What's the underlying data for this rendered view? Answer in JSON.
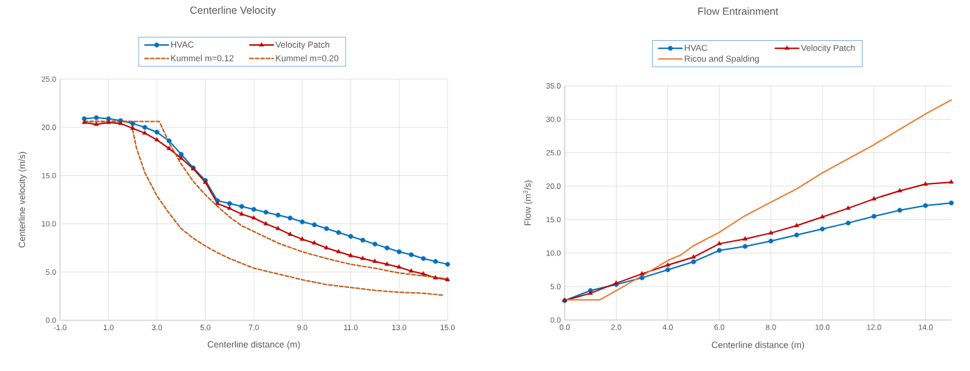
{
  "chart_data": [
    {
      "type": "line",
      "title": "Centerline Velocity",
      "xlabel": "Centerline distance (m)",
      "ylabel": "Centerline velocity (m/s)",
      "x": [
        0,
        0.5,
        1,
        1.5,
        2,
        2.5,
        3,
        3.5,
        4,
        4.5,
        5,
        5.5,
        6,
        6.5,
        7,
        7.5,
        8,
        8.5,
        9,
        9.5,
        10,
        10.5,
        11,
        11.5,
        12,
        12.5,
        13,
        13.5,
        14,
        14.5,
        15
      ],
      "xlim": [
        -1,
        15
      ],
      "xticks": [
        {
          "value": -1,
          "label": "-1.0"
        },
        {
          "value": 1,
          "label": "1.0"
        },
        {
          "value": 3,
          "label": "3.0"
        },
        {
          "value": 5,
          "label": "5.0"
        },
        {
          "value": 7,
          "label": "7.0"
        },
        {
          "value": 9,
          "label": "9.0"
        },
        {
          "value": 11,
          "label": "11.0"
        },
        {
          "value": 13,
          "label": "13.0"
        },
        {
          "value": 15,
          "label": "15.0"
        }
      ],
      "ylim": [
        0,
        25
      ],
      "yticks": [
        {
          "value": 0,
          "label": "0.0"
        },
        {
          "value": 5,
          "label": "5.0"
        },
        {
          "value": 10,
          "label": "10.0"
        },
        {
          "value": 15,
          "label": "15.0"
        },
        {
          "value": 20,
          "label": "20.0"
        },
        {
          "value": 25,
          "label": "25.0"
        }
      ],
      "grid": true,
      "legend": "top",
      "series": [
        {
          "name": "HVAC",
          "color": "#0070c0",
          "marker": "circle",
          "line_style": "solid",
          "values": [
            20.9,
            21.0,
            20.9,
            20.7,
            20.4,
            20.0,
            19.5,
            18.6,
            17.2,
            15.8,
            14.5,
            12.4,
            12.1,
            11.8,
            11.5,
            11.2,
            10.9,
            10.6,
            10.2,
            9.9,
            9.5,
            9.1,
            8.7,
            8.3,
            7.9,
            7.5,
            7.1,
            6.8,
            6.4,
            6.1,
            5.8
          ]
        },
        {
          "name": "Velocity Patch",
          "color": "#c00000",
          "marker": "triangle",
          "line_style": "solid",
          "values": [
            20.5,
            20.3,
            20.5,
            20.4,
            19.9,
            19.4,
            18.7,
            17.8,
            16.8,
            15.7,
            14.3,
            12.1,
            11.6,
            11.0,
            10.6,
            10.0,
            9.5,
            8.9,
            8.4,
            8.0,
            7.5,
            7.1,
            6.7,
            6.4,
            6.1,
            5.8,
            5.5,
            5.1,
            4.8,
            4.4,
            4.2
          ]
        },
        {
          "name": "Kummel m=0.12",
          "color": "#c55a11",
          "marker": "none",
          "line_style": "dashed",
          "x": [
            0,
            3.1,
            3.5,
            4,
            4.5,
            5,
            5.5,
            6,
            6.5,
            7,
            8,
            9,
            10,
            11,
            12,
            13,
            14,
            15
          ],
          "values": [
            20.6,
            20.6,
            18.4,
            16.2,
            14.4,
            13.0,
            11.8,
            10.7,
            9.8,
            9.2,
            8.0,
            7.1,
            6.4,
            5.8,
            5.4,
            4.9,
            4.6,
            4.3
          ]
        },
        {
          "name": "Kummel m=0.20",
          "color": "#c55a11",
          "marker": "none",
          "line_style": "dashed",
          "x": [
            0,
            1.95,
            2,
            2.15,
            2.5,
            3,
            3.5,
            4,
            4.5,
            5,
            5.5,
            6,
            6.5,
            7,
            8,
            9,
            10,
            11,
            12,
            13,
            14,
            14.8
          ],
          "values": [
            20.6,
            20.6,
            19.7,
            17.9,
            15.3,
            12.9,
            11.1,
            9.5,
            8.5,
            7.7,
            7.0,
            6.4,
            5.9,
            5.4,
            4.8,
            4.2,
            3.7,
            3.4,
            3.1,
            2.9,
            2.8,
            2.6
          ]
        }
      ]
    },
    {
      "type": "line",
      "title": "Flow Entrainment",
      "xlabel": "Centerline distance (m)",
      "ylabel": "Flow (m$^{3}$/s)",
      "x": [
        0,
        1,
        2,
        3,
        4,
        5,
        6,
        7,
        8,
        9,
        10,
        11,
        12,
        13,
        14,
        15
      ],
      "xlim": [
        0,
        15
      ],
      "xticks": [
        {
          "value": 0,
          "label": "0.0"
        },
        {
          "value": 2,
          "label": "2.0"
        },
        {
          "value": 4,
          "label": "4.0"
        },
        {
          "value": 6,
          "label": "6.0"
        },
        {
          "value": 8,
          "label": "8.0"
        },
        {
          "value": 10,
          "label": "10.0"
        },
        {
          "value": 12,
          "label": "12.0"
        },
        {
          "value": 14,
          "label": "14.0"
        }
      ],
      "ylim": [
        0,
        35
      ],
      "yticks": [
        {
          "value": 0,
          "label": "0.0"
        },
        {
          "value": 5,
          "label": "5.0"
        },
        {
          "value": 10,
          "label": "10.0"
        },
        {
          "value": 15,
          "label": "15.0"
        },
        {
          "value": 20,
          "label": "20.0"
        },
        {
          "value": 25,
          "label": "25.0"
        },
        {
          "value": 30,
          "label": "30.0"
        },
        {
          "value": 35,
          "label": "35.0"
        }
      ],
      "grid": true,
      "legend": "top",
      "series": [
        {
          "name": "HVAC",
          "color": "#0070c0",
          "marker": "circle",
          "line_style": "solid",
          "values": [
            2.9,
            4.4,
            5.3,
            6.3,
            7.5,
            8.7,
            10.4,
            11.0,
            11.8,
            12.7,
            13.6,
            14.5,
            15.5,
            16.4,
            17.1,
            17.5
          ]
        },
        {
          "name": "Velocity Patch",
          "color": "#c00000",
          "marker": "triangle",
          "line_style": "solid",
          "values": [
            2.9,
            4.0,
            5.5,
            6.9,
            8.2,
            9.4,
            11.4,
            12.1,
            13.0,
            14.1,
            15.4,
            16.7,
            18.1,
            19.3,
            20.3,
            20.6
          ]
        },
        {
          "name": "Ricou and Spalding",
          "color": "#ed7d31",
          "marker": "none",
          "line_style": "solid",
          "x": [
            0,
            1.35,
            2,
            3,
            4,
            4.5,
            5,
            6,
            7,
            8,
            9,
            10,
            11,
            12,
            13,
            14,
            15
          ],
          "values": [
            3.0,
            3.0,
            4.4,
            6.6,
            8.9,
            9.7,
            11.1,
            13.1,
            15.6,
            17.6,
            19.6,
            22.0,
            24.1,
            26.2,
            28.5,
            30.8,
            32.9
          ]
        }
      ]
    }
  ]
}
